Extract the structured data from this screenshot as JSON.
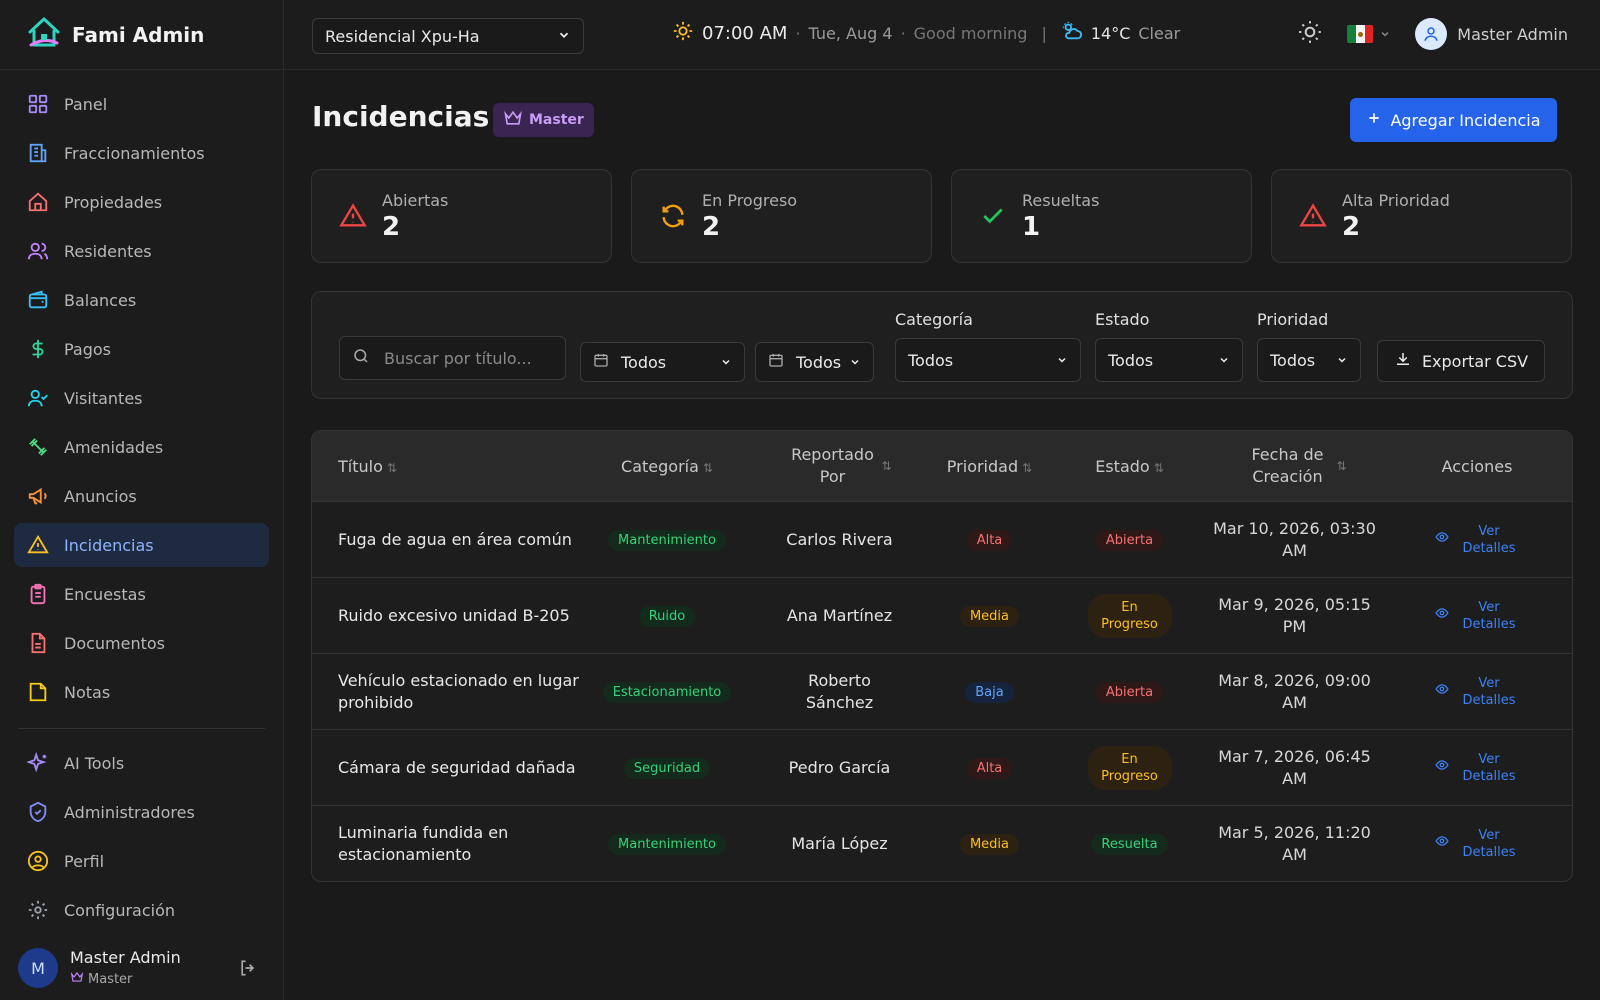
{
  "app": {
    "name": "Fami Admin"
  },
  "topbar": {
    "community": "Residencial Xpu-Ha",
    "time": "07:00 AM",
    "date": "Tue, Aug 4",
    "greeting": "Good morning",
    "temperature": "14°C",
    "weather": "Clear",
    "user": "Master Admin"
  },
  "sidebar": {
    "items": [
      {
        "label": "Panel",
        "icon": "grid-icon"
      },
      {
        "label": "Fraccionamientos",
        "icon": "building-icon"
      },
      {
        "label": "Propiedades",
        "icon": "home-icon"
      },
      {
        "label": "Residentes",
        "icon": "users-icon"
      },
      {
        "label": "Balances",
        "icon": "wallet-icon"
      },
      {
        "label": "Pagos",
        "icon": "dollar-icon"
      },
      {
        "label": "Visitantes",
        "icon": "user-check-icon"
      },
      {
        "label": "Amenidades",
        "icon": "dumbbell-icon"
      },
      {
        "label": "Anuncios",
        "icon": "megaphone-icon"
      },
      {
        "label": "Incidencias",
        "icon": "warning-icon"
      },
      {
        "label": "Encuestas",
        "icon": "clipboard-icon"
      },
      {
        "label": "Documentos",
        "icon": "document-icon"
      },
      {
        "label": "Notas",
        "icon": "note-icon"
      }
    ],
    "secondary": [
      {
        "label": "AI Tools",
        "icon": "sparkles-icon"
      },
      {
        "label": "Administradores",
        "icon": "shield-icon"
      },
      {
        "label": "Perfil",
        "icon": "user-circle-icon"
      },
      {
        "label": "Configuración",
        "icon": "gear-icon"
      }
    ],
    "user": {
      "initial": "M",
      "name": "Master Admin",
      "role": "Master"
    }
  },
  "page": {
    "title": "Incidencias",
    "badge": "Master",
    "add_label": "Agregar Incidencia"
  },
  "stats": [
    {
      "label": "Abiertas",
      "value": "2"
    },
    {
      "label": "En Progreso",
      "value": "2"
    },
    {
      "label": "Resueltas",
      "value": "1"
    },
    {
      "label": "Alta Prioridad",
      "value": "2"
    }
  ],
  "filters": {
    "search_placeholder": "Buscar por título...",
    "date_from": "Todos",
    "date_to": "Todos",
    "category_label": "Categoría",
    "category_value": "Todos",
    "status_label": "Estado",
    "status_value": "Todos",
    "priority_label": "Prioridad",
    "priority_value": "Todos",
    "export_label": "Exportar CSV"
  },
  "table": {
    "headers": {
      "title": "Título",
      "category": "Categoría",
      "reported_by": "Reportado Por",
      "priority": "Prioridad",
      "status": "Estado",
      "created": "Fecha de Creación",
      "actions": "Acciones"
    },
    "action_label": "Ver Detalles",
    "rows": [
      {
        "title": "Fuga de agua en área común",
        "category": "Mantenimiento",
        "reported_by": "Carlos Rivera",
        "priority": "Alta",
        "status": "Abierta",
        "created": "Mar 10, 2026, 03:30 AM"
      },
      {
        "title": "Ruido excesivo unidad B-205",
        "category": "Ruido",
        "reported_by": "Ana Martínez",
        "priority": "Media",
        "status": "En Progreso",
        "created": "Mar 9, 2026, 05:15 PM"
      },
      {
        "title": "Vehículo estacionado en lugar prohibido",
        "category": "Estacionamiento",
        "reported_by": "Roberto Sánchez",
        "priority": "Baja",
        "status": "Abierta",
        "created": "Mar 8, 2026, 09:00 AM"
      },
      {
        "title": "Cámara de seguridad dañada",
        "category": "Seguridad",
        "reported_by": "Pedro García",
        "priority": "Alta",
        "status": "En Progreso",
        "created": "Mar 7, 2026, 06:45 AM"
      },
      {
        "title": "Luminaria fundida en estacionamiento",
        "category": "Mantenimiento",
        "reported_by": "María López",
        "priority": "Media",
        "status": "Resuelta",
        "created": "Mar 5, 2026, 11:20 AM"
      }
    ]
  },
  "colors": {
    "accent": "#2563eb",
    "alta": "#f87171",
    "media": "#fbbf24",
    "baja": "#60a5fa",
    "ok": "#34d27a",
    "master": "#c99cf7"
  }
}
